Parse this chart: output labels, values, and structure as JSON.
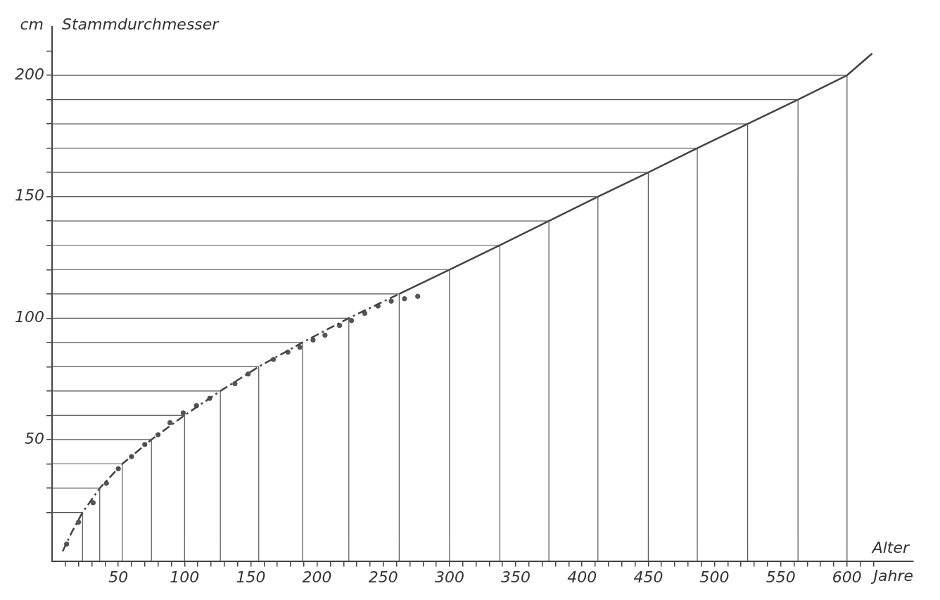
{
  "chart_data": {
    "type": "line",
    "xlabel": "Alter",
    "ylabel": "Stammdurchmesser",
    "annotations": [
      "cm",
      "Jahre"
    ],
    "xlim": [
      0,
      650
    ],
    "ylim": [
      0,
      220
    ],
    "xticks": [
      {
        "value": 10,
        "label": null
      },
      {
        "value": 20,
        "label": null
      },
      {
        "value": 30,
        "label": null
      },
      {
        "value": 40,
        "label": null
      },
      50,
      {
        "value": 60,
        "label": null
      },
      {
        "value": 70,
        "label": null
      },
      {
        "value": 80,
        "label": null
      },
      {
        "value": 90,
        "label": null
      },
      100,
      {
        "value": 110,
        "label": null
      },
      {
        "value": 120,
        "label": null
      },
      {
        "value": 130,
        "label": null
      },
      {
        "value": 140,
        "label": null
      },
      150,
      {
        "value": 160,
        "label": null
      },
      {
        "value": 170,
        "label": null
      },
      {
        "value": 180,
        "label": null
      },
      {
        "value": 190,
        "label": null
      },
      200,
      {
        "value": 210,
        "label": null
      },
      {
        "value": 220,
        "label": null
      },
      {
        "value": 230,
        "label": null
      },
      {
        "value": 240,
        "label": null
      },
      250,
      {
        "value": 260,
        "label": null
      },
      {
        "value": 270,
        "label": null
      },
      {
        "value": 280,
        "label": null
      },
      {
        "value": 290,
        "label": null
      },
      300,
      {
        "value": 310,
        "label": null
      },
      {
        "value": 320,
        "label": null
      },
      {
        "value": 330,
        "label": null
      },
      {
        "value": 340,
        "label": null
      },
      350,
      {
        "value": 360,
        "label": null
      },
      {
        "value": 370,
        "label": null
      },
      {
        "value": 380,
        "label": null
      },
      {
        "value": 390,
        "label": null
      },
      400,
      {
        "value": 410,
        "label": null
      },
      {
        "value": 420,
        "label": null
      },
      {
        "value": 430,
        "label": null
      },
      {
        "value": 440,
        "label": null
      },
      450,
      {
        "value": 460,
        "label": null
      },
      {
        "value": 470,
        "label": null
      },
      {
        "value": 480,
        "label": null
      },
      {
        "value": 490,
        "label": null
      },
      500,
      {
        "value": 510,
        "label": null
      },
      {
        "value": 520,
        "label": null
      },
      {
        "value": 530,
        "label": null
      },
      {
        "value": 540,
        "label": null
      },
      550,
      {
        "value": 560,
        "label": null
      },
      {
        "value": 570,
        "label": null
      },
      {
        "value": 580,
        "label": null
      },
      {
        "value": 590,
        "label": null
      },
      600,
      {
        "value": 610,
        "label": null
      },
      {
        "value": 620,
        "label": null
      }
    ],
    "yticks": [
      {
        "value": 20,
        "label": null
      },
      {
        "value": 30,
        "label": null
      },
      {
        "value": 40,
        "label": null
      },
      50,
      {
        "value": 60,
        "label": null
      },
      {
        "value": 70,
        "label": null
      },
      {
        "value": 80,
        "label": null
      },
      {
        "value": 90,
        "label": null
      },
      100,
      {
        "value": 110,
        "label": null
      },
      {
        "value": 120,
        "label": null
      },
      {
        "value": 130,
        "label": null
      },
      {
        "value": 140,
        "label": null
      },
      150,
      {
        "value": 160,
        "label": null
      },
      {
        "value": 170,
        "label": null
      },
      {
        "value": 180,
        "label": null
      },
      {
        "value": 190,
        "label": null
      },
      200,
      {
        "value": 210,
        "label": null
      }
    ],
    "legend": false,
    "series": [
      {
        "type": "line",
        "color": "#555555",
        "x": [
          0,
          23,
          23
        ],
        "values": [
          20,
          20,
          0
        ]
      },
      {
        "type": "line",
        "color": "#555555",
        "x": [
          0,
          36,
          36
        ],
        "values": [
          30,
          30,
          0
        ]
      },
      {
        "type": "line",
        "color": "#555555",
        "x": [
          0,
          53,
          53
        ],
        "values": [
          40,
          40,
          0
        ]
      },
      {
        "type": "line",
        "color": "#555555",
        "x": [
          0,
          75,
          75
        ],
        "values": [
          50,
          50,
          0
        ]
      },
      {
        "type": "line",
        "color": "#555555",
        "x": [
          0,
          100,
          100
        ],
        "values": [
          60,
          60,
          0
        ]
      },
      {
        "type": "line",
        "color": "#555555",
        "x": [
          0,
          127,
          127
        ],
        "values": [
          70,
          70,
          0
        ]
      },
      {
        "type": "line",
        "color": "#555555",
        "x": [
          0,
          156,
          156
        ],
        "values": [
          80,
          80,
          0
        ]
      },
      {
        "type": "line",
        "color": "#555555",
        "x": [
          0,
          189,
          189
        ],
        "values": [
          90,
          90,
          0
        ]
      },
      {
        "type": "line",
        "color": "#555555",
        "x": [
          0,
          224,
          224
        ],
        "values": [
          100,
          100,
          0
        ]
      },
      {
        "type": "line",
        "color": "#555555",
        "x": [
          0,
          262,
          262
        ],
        "values": [
          110,
          110,
          0
        ]
      },
      {
        "type": "line",
        "color": "#555555",
        "x": [
          0,
          300,
          300
        ],
        "values": [
          120,
          120,
          0
        ]
      },
      {
        "type": "line",
        "color": "#555555",
        "x": [
          0,
          338,
          338
        ],
        "values": [
          130,
          130,
          0
        ]
      },
      {
        "type": "line",
        "color": "#555555",
        "x": [
          0,
          375,
          375
        ],
        "values": [
          140,
          140,
          0
        ]
      },
      {
        "type": "line",
        "color": "#555555",
        "x": [
          0,
          412,
          412
        ],
        "values": [
          150,
          150,
          0
        ]
      },
      {
        "type": "line",
        "color": "#555555",
        "x": [
          0,
          450,
          450
        ],
        "values": [
          160,
          160,
          0
        ]
      },
      {
        "type": "line",
        "color": "#555555",
        "x": [
          0,
          487,
          487
        ],
        "values": [
          170,
          170,
          0
        ]
      },
      {
        "type": "line",
        "color": "#555555",
        "x": [
          0,
          525,
          525
        ],
        "values": [
          180,
          180,
          0
        ]
      },
      {
        "type": "line",
        "color": "#555555",
        "x": [
          0,
          563,
          563
        ],
        "values": [
          190,
          190,
          0
        ]
      },
      {
        "type": "line",
        "color": "#555555",
        "x": [
          0,
          600,
          600
        ],
        "values": [
          200,
          200,
          0
        ]
      },
      {
        "type": "line",
        "line_style": "dashed",
        "color": "#444444",
        "x": [
          8,
          15,
          23,
          36,
          53,
          75,
          100,
          127,
          156,
          189,
          224,
          262
        ],
        "values": [
          4,
          12,
          20,
          30,
          40,
          50,
          60,
          70,
          80,
          90,
          100,
          110
        ]
      },
      {
        "type": "line",
        "line_style": "solid",
        "color": "#444444",
        "x": [
          262,
          300,
          338,
          375,
          412,
          450,
          487,
          525,
          563,
          600,
          619
        ],
        "values": [
          110,
          120,
          130,
          140,
          150,
          160,
          170,
          180,
          190,
          200,
          209
        ]
      },
      {
        "type": "scatter",
        "marker": "circle",
        "color": "#555555",
        "x": [
          11,
          20,
          31,
          41,
          50,
          60,
          70,
          80,
          89,
          99,
          109,
          119,
          138,
          148,
          167,
          178,
          187,
          197,
          206,
          217,
          226,
          236,
          246,
          256,
          266,
          276
        ],
        "values": [
          7,
          16,
          24,
          32,
          38,
          43,
          48,
          52,
          57,
          61,
          64,
          67,
          73,
          77,
          83,
          86,
          88,
          91,
          93,
          97,
          99,
          102,
          105,
          107,
          108,
          109
        ]
      }
    ]
  }
}
